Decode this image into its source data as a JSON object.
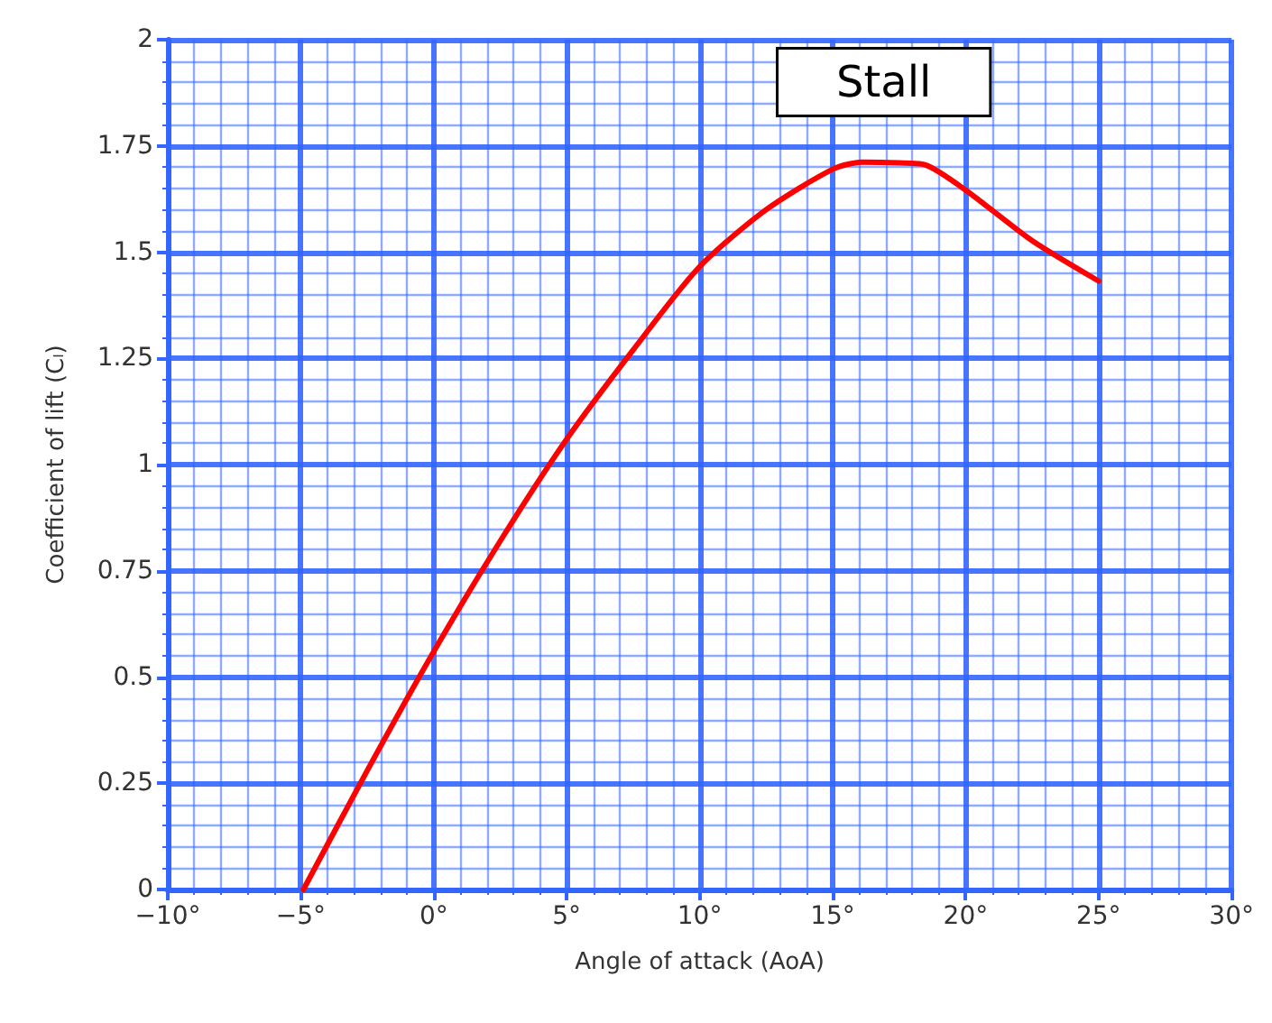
{
  "chart_data": {
    "type": "line",
    "xlabel": "Angle of attack (AoA)",
    "ylabel": "Coefficient of lift (Cₗ)",
    "x": [
      -4.9,
      -2.5,
      0,
      2.5,
      5,
      7.5,
      10,
      12.5,
      15,
      16.1,
      17.5,
      18.5,
      20,
      22.5,
      25
    ],
    "series": [
      {
        "color": "#ff0000",
        "values": [
          0,
          0.28,
          0.56,
          0.82,
          1.06,
          1.27,
          1.466,
          1.6,
          1.695,
          1.712,
          1.71,
          1.705,
          1.646,
          1.527,
          1.432
        ]
      }
    ],
    "xlim": [
      -10,
      30
    ],
    "xticks": [
      {
        "value": -10,
        "label": "−10°"
      },
      {
        "value": -9,
        "label": null
      },
      {
        "value": -8,
        "label": null
      },
      {
        "value": -7,
        "label": null
      },
      {
        "value": -6,
        "label": null
      },
      {
        "value": -5,
        "label": "−5°"
      },
      {
        "value": -4,
        "label": null
      },
      {
        "value": -3,
        "label": null
      },
      {
        "value": -2,
        "label": null
      },
      {
        "value": -1,
        "label": null
      },
      {
        "value": 0,
        "label": "0°"
      },
      {
        "value": 1,
        "label": null
      },
      {
        "value": 2,
        "label": null
      },
      {
        "value": 3,
        "label": null
      },
      {
        "value": 4,
        "label": null
      },
      {
        "value": 5,
        "label": "5°"
      },
      {
        "value": 6,
        "label": null
      },
      {
        "value": 7,
        "label": null
      },
      {
        "value": 8,
        "label": null
      },
      {
        "value": 9,
        "label": null
      },
      {
        "value": 10,
        "label": "10°"
      },
      {
        "value": 11,
        "label": null
      },
      {
        "value": 12,
        "label": null
      },
      {
        "value": 13,
        "label": null
      },
      {
        "value": 14,
        "label": null
      },
      {
        "value": 15,
        "label": "15°"
      },
      {
        "value": 16,
        "label": null
      },
      {
        "value": 17,
        "label": null
      },
      {
        "value": 18,
        "label": null
      },
      {
        "value": 19,
        "label": null
      },
      {
        "value": 20,
        "label": "20°"
      },
      {
        "value": 21,
        "label": null
      },
      {
        "value": 22,
        "label": null
      },
      {
        "value": 23,
        "label": null
      },
      {
        "value": 24,
        "label": null
      },
      {
        "value": 25,
        "label": "25°"
      },
      {
        "value": 26,
        "label": null
      },
      {
        "value": 27,
        "label": null
      },
      {
        "value": 28,
        "label": null
      },
      {
        "value": 29,
        "label": null
      },
      {
        "value": 30,
        "label": "30°"
      }
    ],
    "ylim": [
      0,
      2
    ],
    "yticks": [
      0,
      {
        "value": 0.05,
        "label": null
      },
      {
        "value": 0.1,
        "label": null
      },
      {
        "value": 0.15,
        "label": null
      },
      {
        "value": 0.2,
        "label": null
      },
      0.25,
      {
        "value": 0.3,
        "label": null
      },
      {
        "value": 0.35,
        "label": null
      },
      {
        "value": 0.4,
        "label": null
      },
      {
        "value": 0.45,
        "label": null
      },
      0.5,
      {
        "value": 0.55,
        "label": null
      },
      {
        "value": 0.6,
        "label": null
      },
      {
        "value": 0.65,
        "label": null
      },
      {
        "value": 0.7,
        "label": null
      },
      0.75,
      {
        "value": 0.8,
        "label": null
      },
      {
        "value": 0.85,
        "label": null
      },
      {
        "value": 0.9,
        "label": null
      },
      {
        "value": 0.95,
        "label": null
      },
      1,
      {
        "value": 1.05,
        "label": null
      },
      {
        "value": 1.1,
        "label": null
      },
      {
        "value": 1.15,
        "label": null
      },
      {
        "value": 1.2,
        "label": null
      },
      1.25,
      {
        "value": 1.3,
        "label": null
      },
      {
        "value": 1.35,
        "label": null
      },
      {
        "value": 1.4,
        "label": null
      },
      {
        "value": 1.45,
        "label": null
      },
      1.5,
      {
        "value": 1.55,
        "label": null
      },
      {
        "value": 1.6,
        "label": null
      },
      {
        "value": 1.65,
        "label": null
      },
      {
        "value": 1.7,
        "label": null
      },
      1.75,
      {
        "value": 1.8,
        "label": null
      },
      {
        "value": 1.85,
        "label": null
      },
      {
        "value": 1.9,
        "label": null
      },
      {
        "value": 1.95,
        "label": null
      },
      2
    ],
    "grid": true,
    "marker": "none",
    "line_style": "solid",
    "annotations": [
      "Stall"
    ]
  }
}
